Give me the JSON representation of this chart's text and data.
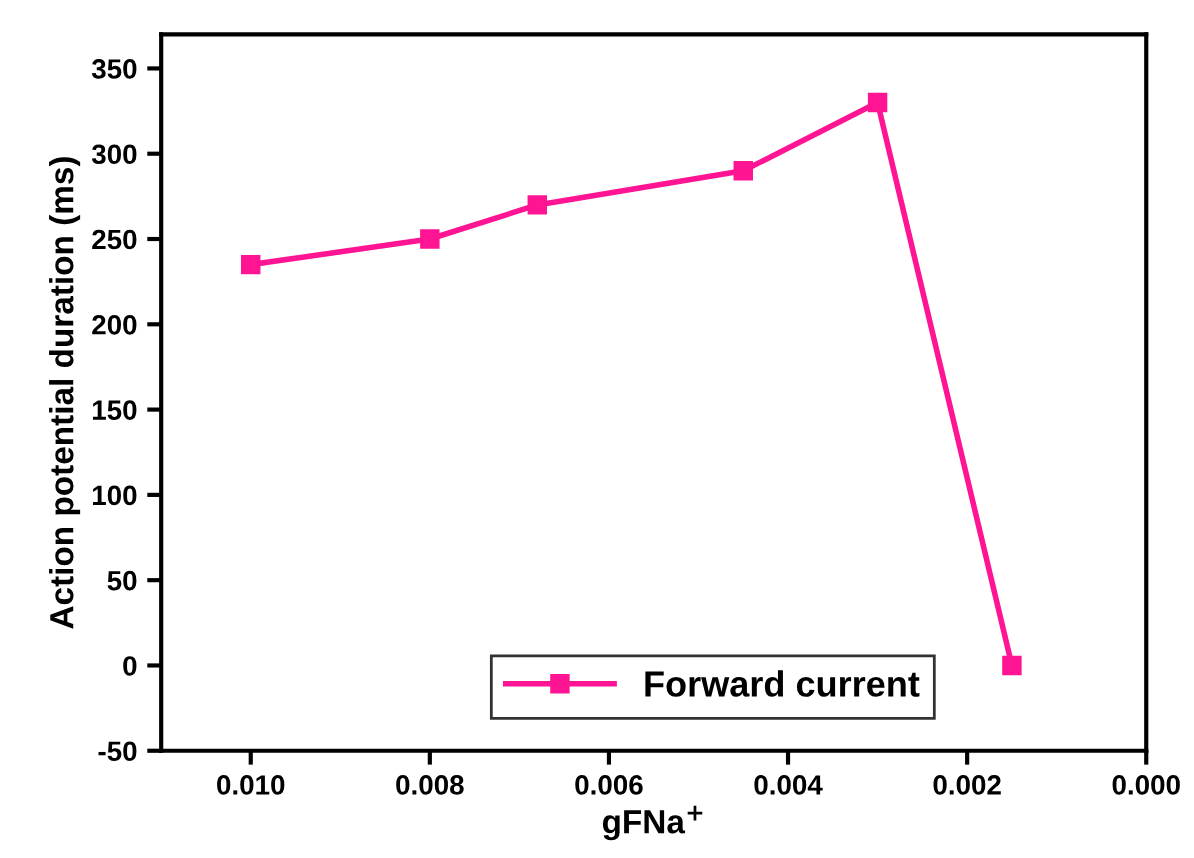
{
  "chart_data": {
    "type": "line",
    "xlabel": "gFNa$^{+}$",
    "ylabel": "Action potential duration (ms)",
    "x": [
      0.01,
      0.008,
      0.0068,
      0.0045,
      0.003,
      0.0015
    ],
    "series": [
      {
        "name": "Forward current",
        "color": "#ff1493",
        "values": [
          235,
          250,
          270,
          290,
          330,
          0
        ]
      }
    ],
    "xlim": [
      0.011,
      0.0
    ],
    "xticks": [
      {
        "value": 0.01,
        "label": "0.010"
      },
      {
        "value": 0.008,
        "label": "0.008"
      },
      {
        "value": 0.006,
        "label": "0.006"
      },
      {
        "value": 0.004,
        "label": "0.004"
      },
      {
        "value": 0.002,
        "label": "0.002"
      },
      {
        "value": 0.0,
        "label": "0.000"
      }
    ],
    "ylim": [
      -50,
      370
    ],
    "yticks": [
      -50,
      0,
      50,
      100,
      150,
      200,
      250,
      300,
      350
    ],
    "grid": false,
    "legend": "bottom",
    "marker": "square",
    "line_style": "solid"
  }
}
